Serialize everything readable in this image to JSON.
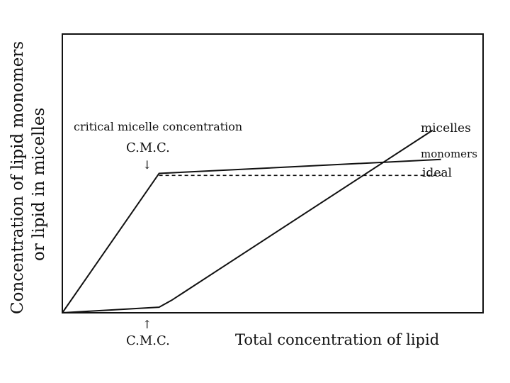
{
  "chart_data": {
    "type": "line",
    "title": "",
    "xlabel": "Total concentration of lipid",
    "ylabel_line1": "Concentration of lipid monomers",
    "ylabel_line2": "or lipid in micelles",
    "xlim": [
      0,
      10
    ],
    "ylim": [
      0,
      10
    ],
    "series": [
      {
        "name": "monomers",
        "style": "solid",
        "points": [
          [
            0,
            0
          ],
          [
            2.3,
            5
          ],
          [
            9,
            5.5
          ]
        ]
      },
      {
        "name": "ideal",
        "style": "dashed",
        "points": [
          [
            2.3,
            4.93
          ],
          [
            9,
            4.93
          ]
        ]
      },
      {
        "name": "micelles",
        "style": "solid",
        "points": [
          [
            0,
            0
          ],
          [
            2.3,
            0.2
          ],
          [
            2.6,
            0.45
          ],
          [
            8.8,
            6.55
          ]
        ]
      }
    ],
    "annotations": {
      "critical": "critical micelle concentration",
      "cmc_top": "C.M.C.",
      "cmc_bottom": "C.M.C.",
      "arrow_down": "↓",
      "arrow_up": "↑"
    },
    "colors": {
      "line": "#111111",
      "background": "#ffffff"
    }
  }
}
